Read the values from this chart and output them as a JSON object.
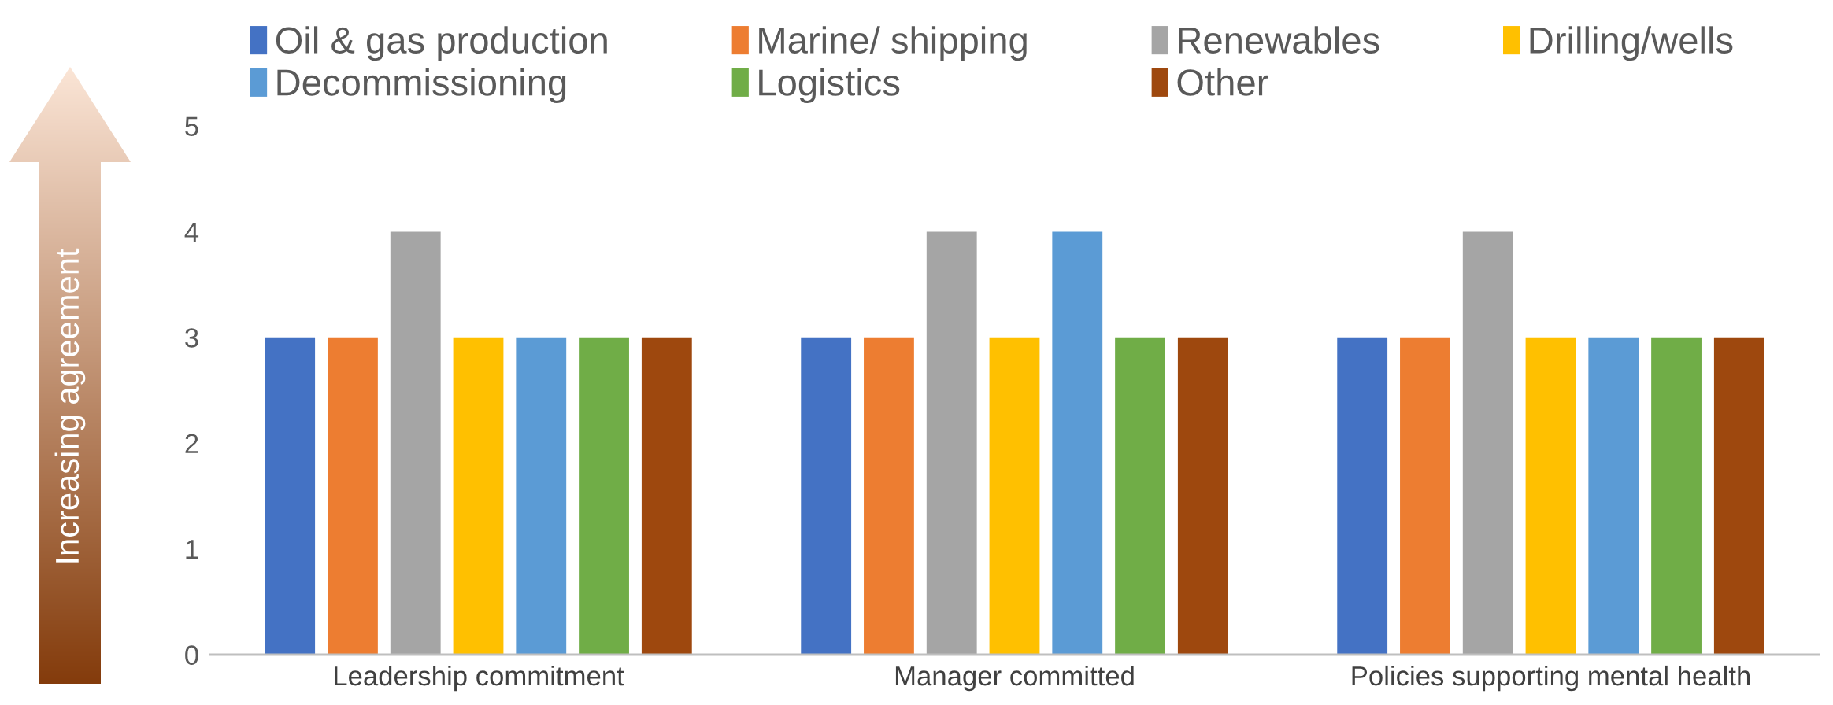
{
  "chart_data": {
    "type": "bar",
    "ylabel": "Increasing agreement",
    "categories": [
      "Leadership commitment",
      "Manager committed",
      "Policies supporting mental health"
    ],
    "series": [
      {
        "name": "Oil & gas production",
        "color": "#4472c4",
        "values": [
          3,
          3,
          3
        ]
      },
      {
        "name": "Marine/ shipping",
        "color": "#ed7d31",
        "values": [
          3,
          3,
          3
        ]
      },
      {
        "name": "Renewables",
        "color": "#a5a5a5",
        "values": [
          4,
          4,
          4
        ]
      },
      {
        "name": "Drilling/wells",
        "color": "#ffc000",
        "values": [
          3,
          3,
          3
        ]
      },
      {
        "name": "Decommissioning",
        "color": "#5b9bd5",
        "values": [
          3,
          4,
          3
        ]
      },
      {
        "name": "Logistics",
        "color": "#70ad47",
        "values": [
          3,
          3,
          3
        ]
      },
      {
        "name": "Other",
        "color": "#9e480e",
        "values": [
          3,
          3,
          3
        ]
      }
    ],
    "ylim": [
      0,
      5
    ],
    "yticks": [
      0,
      1,
      2,
      3,
      4,
      5
    ],
    "grid": false,
    "legend": "top"
  }
}
